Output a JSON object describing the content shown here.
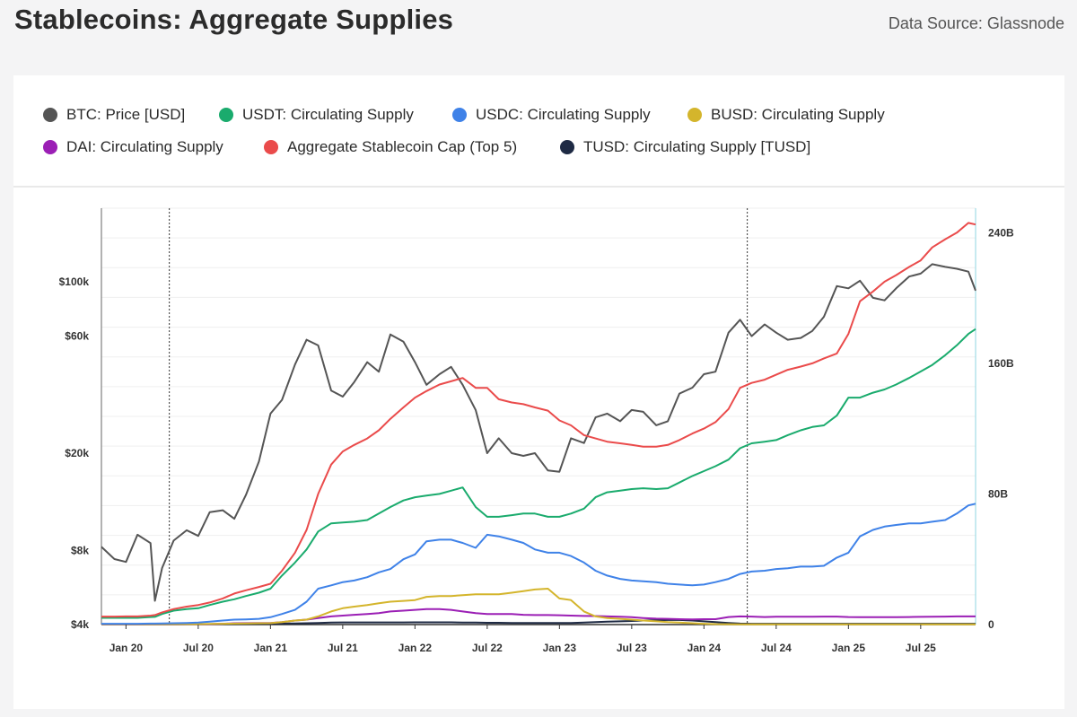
{
  "header": {
    "title": "Stablecoins: Aggregate Supplies",
    "source": "Data Source: Glassnode"
  },
  "legend": [
    {
      "label": "BTC: Price [USD]",
      "color": "#555555"
    },
    {
      "label": "USDT: Circulating Supply",
      "color": "#1aab6d"
    },
    {
      "label": "USDC: Circulating Supply",
      "color": "#3f82e8"
    },
    {
      "label": "BUSD: Circulating Supply",
      "color": "#d4b52c"
    },
    {
      "label": "DAI: Circulating Supply",
      "color": "#9b1fb5"
    },
    {
      "label": "Aggregate Stablecoin Cap (Top 5)",
      "color": "#ea4b4b"
    },
    {
      "label": "TUSD: Circulating Supply [TUSD]",
      "color": "#1e2a44"
    }
  ],
  "chart_data": {
    "type": "line",
    "title": "Stablecoins: Aggregate Supplies",
    "x_range": [
      "2019-11",
      "2025-12"
    ],
    "x_ticks": [
      "Jan 20",
      "Jul 20",
      "Jan 21",
      "Jul 21",
      "Jan 22",
      "Jul 22",
      "Jan 23",
      "Jul 23",
      "Jan 24",
      "Jul 24",
      "Jan 25",
      "Jul 25"
    ],
    "y_left": {
      "scale": "log",
      "ticks": [
        "$4k",
        "$8k",
        "$20k",
        "$60k",
        "$100k"
      ],
      "tick_values": [
        4000,
        8000,
        20000,
        60000,
        100000
      ]
    },
    "y_right": {
      "scale": "linear",
      "ticks": [
        "0",
        "80B",
        "160B",
        "240B"
      ],
      "tick_values": [
        0,
        80,
        160,
        240
      ],
      "range": [
        0,
        255
      ]
    },
    "grid": true,
    "legend_position": "top",
    "x": [
      2019.83,
      2019.92,
      2020.0,
      2020.08,
      2020.17,
      2020.2,
      2020.25,
      2020.33,
      2020.42,
      2020.5,
      2020.58,
      2020.67,
      2020.75,
      2020.83,
      2020.92,
      2021.0,
      2021.08,
      2021.17,
      2021.25,
      2021.33,
      2021.42,
      2021.5,
      2021.58,
      2021.67,
      2021.75,
      2021.83,
      2021.92,
      2022.0,
      2022.08,
      2022.17,
      2022.25,
      2022.33,
      2022.42,
      2022.5,
      2022.58,
      2022.67,
      2022.75,
      2022.83,
      2022.92,
      2023.0,
      2023.08,
      2023.17,
      2023.25,
      2023.33,
      2023.42,
      2023.5,
      2023.58,
      2023.67,
      2023.75,
      2023.83,
      2023.92,
      2024.0,
      2024.08,
      2024.17,
      2024.25,
      2024.33,
      2024.42,
      2024.5,
      2024.58,
      2024.67,
      2024.75,
      2024.83,
      2024.92,
      2025.0,
      2025.08,
      2025.17,
      2025.25,
      2025.33,
      2025.42,
      2025.5,
      2025.58,
      2025.67,
      2025.75,
      2025.83,
      2025.88
    ],
    "series": [
      {
        "name": "BTC: Price [USD]",
        "axis": "left",
        "color": "#555555",
        "values": [
          8300,
          7400,
          7200,
          9300,
          8600,
          5000,
          6800,
          8800,
          9700,
          9200,
          11500,
          11700,
          10800,
          13500,
          18500,
          29000,
          33000,
          46000,
          58000,
          55000,
          36000,
          34000,
          39000,
          47000,
          43000,
          61000,
          57000,
          47000,
          38000,
          42000,
          45000,
          38000,
          30000,
          20000,
          23000,
          20000,
          19500,
          20000,
          17000,
          16800,
          23000,
          22000,
          28000,
          29000,
          27000,
          30000,
          29500,
          26000,
          27000,
          35000,
          37000,
          42000,
          43000,
          62000,
          70000,
          60000,
          67000,
          62000,
          58000,
          59000,
          63000,
          72000,
          96000,
          94000,
          101000,
          86000,
          84000,
          94000,
          105000,
          108000,
          118000,
          115000,
          113000,
          110000,
          92000
        ]
      },
      {
        "name": "USDT: Circulating Supply",
        "axis": "right",
        "color": "#1aab6d",
        "values": [
          4.1,
          4.1,
          4.1,
          4.1,
          4.6,
          4.7,
          6.5,
          8.5,
          9.5,
          10,
          12,
          14,
          15.5,
          17.5,
          19.5,
          22,
          30,
          38,
          46,
          57,
          62,
          62.5,
          63,
          64,
          68,
          72,
          76,
          78,
          79,
          80,
          82,
          84,
          72,
          66,
          66,
          67,
          68,
          68,
          66,
          66,
          68,
          71,
          78,
          81,
          82,
          83,
          83.5,
          83,
          83.5,
          87,
          91,
          94,
          97,
          101,
          108,
          111,
          112,
          113,
          116,
          119,
          121,
          122,
          128,
          139,
          139,
          142,
          144,
          147,
          151,
          155,
          159,
          165,
          171,
          178,
          181
        ]
      },
      {
        "name": "USDC: Circulating Supply",
        "axis": "right",
        "color": "#3f82e8",
        "values": [
          0.5,
          0.5,
          0.5,
          0.5,
          0.6,
          0.6,
          0.7,
          0.8,
          1.0,
          1.2,
          1.8,
          2.5,
          3.0,
          3.2,
          3.5,
          4.5,
          6.5,
          9.0,
          14,
          22,
          24,
          26,
          27,
          29,
          32,
          34,
          40,
          43,
          51,
          52,
          52,
          50,
          47,
          55,
          54,
          52,
          50,
          46,
          44,
          44,
          42,
          38,
          33,
          30,
          28,
          27,
          26.5,
          26,
          25,
          24.5,
          24,
          24.5,
          26,
          28,
          31,
          32.5,
          33,
          34,
          34.5,
          35.5,
          35.5,
          36,
          41,
          44,
          54,
          58,
          60,
          61,
          62,
          62,
          63,
          64,
          68,
          73,
          74
        ]
      },
      {
        "name": "BUSD: Circulating Supply",
        "axis": "right",
        "color": "#d4b52c",
        "values": [
          0.2,
          0.2,
          0.2,
          0.2,
          0.2,
          0.2,
          0.2,
          0.2,
          0.3,
          0.3,
          0.4,
          0.5,
          0.6,
          0.7,
          0.8,
          0.9,
          1.5,
          2.5,
          3,
          5,
          8,
          10,
          11,
          12,
          13,
          14,
          14.5,
          15,
          17,
          17.5,
          17.5,
          18,
          18.5,
          18.5,
          18.5,
          19.5,
          20.5,
          21.5,
          22,
          16,
          15,
          8,
          5,
          4,
          3.5,
          3,
          2.5,
          2,
          1.5,
          1.2,
          0.8,
          0.5,
          0.3,
          0.2,
          0.1,
          0.1,
          0.1,
          0.1,
          0.1,
          0.1,
          0.1,
          0.1,
          0.1,
          0.1,
          0.1,
          0.1,
          0.1,
          0.1,
          0.1,
          0.1,
          0.1,
          0.1,
          0.1,
          0.1,
          0.1
        ]
      },
      {
        "name": "DAI: Circulating Supply",
        "axis": "right",
        "color": "#9b1fb5",
        "values": [
          0.1,
          0.1,
          0.1,
          0.1,
          0.1,
          0.1,
          0.1,
          0.1,
          0.2,
          0.2,
          0.3,
          0.5,
          0.8,
          0.9,
          1.0,
          1.0,
          1.5,
          2.5,
          3,
          4,
          5,
          5.5,
          6,
          6.5,
          7,
          8,
          8.5,
          9,
          9.5,
          9.5,
          9,
          8,
          7,
          6.5,
          6.5,
          6.5,
          6,
          5.8,
          5.8,
          5.7,
          5.5,
          5.3,
          5.2,
          5.0,
          4.8,
          4.5,
          4.0,
          3.6,
          3.5,
          3.3,
          3.2,
          3.3,
          3.3,
          4.6,
          5,
          4.9,
          4.6,
          4.8,
          4.8,
          4.8,
          4.8,
          4.9,
          4.9,
          4.6,
          4.5,
          4.5,
          4.5,
          4.5,
          4.6,
          4.7,
          4.8,
          4.9,
          5.0,
          5.0,
          5.0
        ]
      },
      {
        "name": "Aggregate Stablecoin Cap (Top 5)",
        "axis": "right",
        "color": "#ea4b4b",
        "values": [
          4.9,
          4.9,
          5.0,
          5.0,
          5.5,
          5.8,
          7.5,
          9.5,
          11,
          12,
          13.5,
          16,
          19,
          21,
          23,
          25,
          33,
          44,
          58,
          80,
          98,
          106,
          110,
          114,
          119,
          126,
          133,
          139,
          143,
          147,
          149,
          151,
          145,
          145,
          138,
          136,
          135,
          133,
          131,
          125,
          122,
          116,
          114,
          112,
          111,
          110,
          109,
          109,
          110,
          113,
          117,
          120,
          124,
          132,
          145,
          148,
          150,
          153,
          156,
          158,
          160,
          163,
          166,
          178,
          198,
          204,
          210,
          214,
          219,
          223,
          231,
          236,
          240,
          246,
          245
        ]
      },
      {
        "name": "TUSD: Circulating Supply [TUSD]",
        "axis": "right",
        "color": "#1e2a44",
        "values": [
          0.2,
          0.2,
          0.2,
          0.2,
          0.2,
          0.2,
          0.2,
          0.2,
          0.3,
          0.3,
          0.3,
          0.4,
          0.4,
          0.5,
          0.5,
          0.5,
          0.6,
          0.7,
          0.8,
          1.0,
          1.2,
          1.3,
          1.3,
          1.3,
          1.3,
          1.3,
          1.3,
          1.4,
          1.4,
          1.4,
          1.4,
          1.2,
          1.2,
          1.1,
          1.1,
          1.0,
          1.0,
          1.0,
          1.0,
          1.0,
          1.0,
          1.2,
          1.5,
          1.8,
          2.0,
          2.2,
          2.5,
          2.7,
          2.8,
          2.8,
          2.5,
          2.0,
          1.5,
          1.0,
          0.6,
          0.5,
          0.5,
          0.5,
          0.5,
          0.5,
          0.5,
          0.5,
          0.5,
          0.5,
          0.5,
          0.5,
          0.5,
          0.5,
          0.5,
          0.5,
          0.5,
          0.5,
          0.5,
          0.5,
          0.5
        ]
      }
    ]
  }
}
